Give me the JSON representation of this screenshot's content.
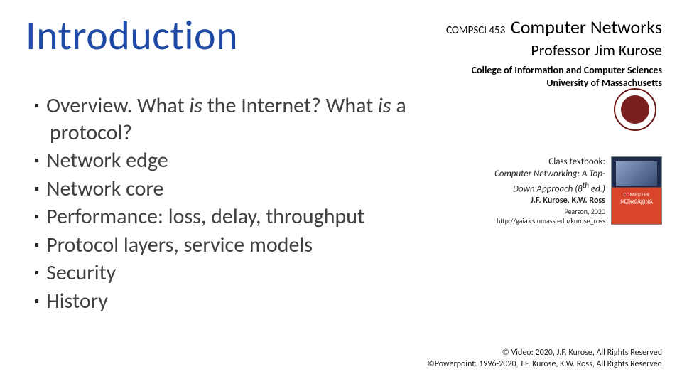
{
  "title": {
    "text": "Introduction",
    "color": "#1f49a6"
  },
  "header": {
    "course_code": "COMPSCI 453",
    "course_name": "Computer Networks",
    "professor": "Professor Jim Kurose",
    "college": "College of Information and Computer Sciences",
    "university": "University of Massachusetts"
  },
  "bullets": [
    "Overview. What <em>is</em> the Internet? What <em>is</em> a protocol?",
    "Network edge",
    "Network core",
    "Performance: loss, delay, throughput",
    "Protocol layers, service models",
    "Security",
    "History"
  ],
  "textbook": {
    "label": "Class textbook:",
    "title_line1": "Computer Networking: A Top-",
    "title_line2": "Down Approach (8",
    "title_sup": "th",
    "title_tail": " ed.)",
    "authors": "J.F. Kurose, K.W. Ross",
    "publisher": "Pearson, 2020",
    "url": "http://gaia.cs.umass.edu/kurose_ross",
    "cover_title": "COMPUTER NETWORKING",
    "cover_sub": "A Top-Down Approach"
  },
  "copyright": {
    "line1": "© Video: 2020, J.F. Kurose, All Rights Reserved",
    "line2": "©Powerpoint: 1996-2020, J.F. Kurose, K.W. Ross, All Rights Reserved"
  },
  "colors": {
    "title": "#1f49a6",
    "text": "#404040",
    "seal": "#7a1f1f"
  }
}
